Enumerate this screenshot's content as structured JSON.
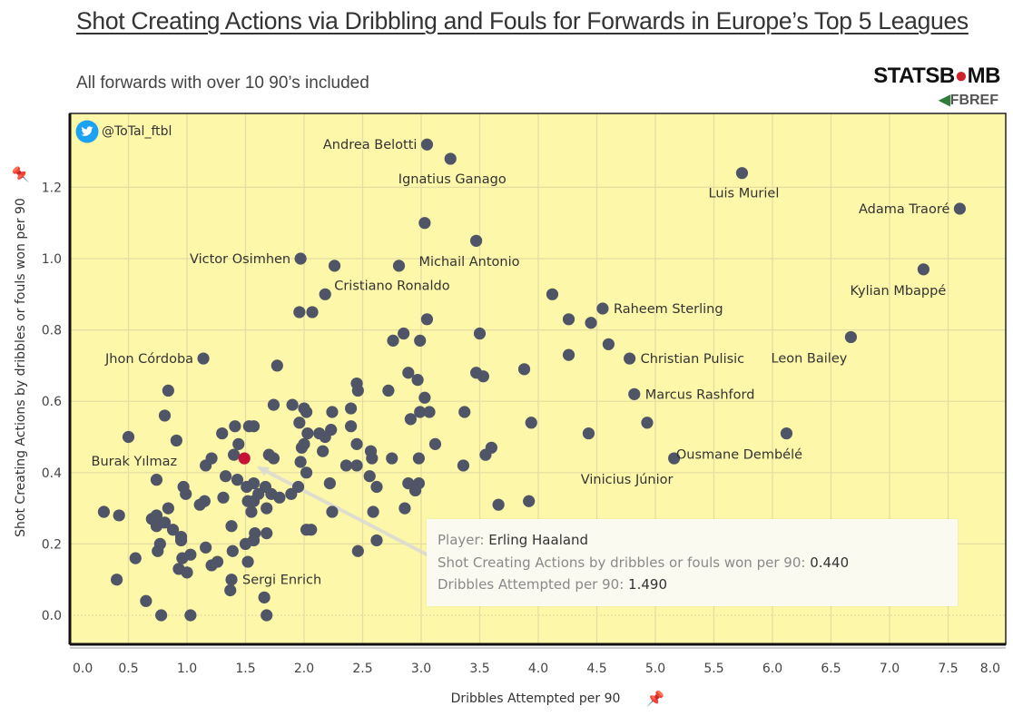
{
  "header": {
    "title": "Shot Creating Actions via Dribbling and Fouls for Forwards in Europe’s Top 5 Leagues",
    "subtitle": "All forwards with over 10 90’s included",
    "logo_text": "STATSBOMB",
    "logo_subtext": "FBREF",
    "twitter_handle": "@ToTal_ftbl"
  },
  "colors": {
    "plot_background": "#fdf7aa",
    "point": "#4f5566",
    "highlight_point": "#c41336",
    "gridline": "#e4dca0",
    "twitter_blue": "#1da1f2"
  },
  "tooltip": {
    "player_label": "Player:",
    "player_value": "Erling Haaland",
    "sca_label": "Shot Creating Actions by dribbles or fouls won per 90:",
    "sca_value": "0.440",
    "dribbles_label": "Dribbles Attempted per 90:",
    "dribbles_value": "1.490"
  },
  "chart_data": {
    "type": "scatter",
    "title": "Shot Creating Actions via Dribbling and Fouls for Forwards in Europe’s Top 5 Leagues",
    "subtitle": "All forwards with over 10 90’s included",
    "xlabel": "Dribbles Attempted per 90",
    "ylabel": "Shot Creating Actions by dribbles or fouls won per 90",
    "xlim": [
      0,
      8
    ],
    "ylim": [
      -0.08,
      1.4
    ],
    "xticks": [
      "0.0",
      "0.5",
      "1.0",
      "1.5",
      "2.0",
      "2.5",
      "3.0",
      "3.5",
      "4.0",
      "4.5",
      "5.0",
      "5.5",
      "6.0",
      "6.5",
      "7.0",
      "7.5",
      "8.0"
    ],
    "yticks": [
      "0.0",
      "0.2",
      "0.4",
      "0.6",
      "0.8",
      "1.0",
      "1.2"
    ],
    "grid": true,
    "highlighted": {
      "label": "Erling Haaland",
      "x": 1.49,
      "y": 0.44
    },
    "labeled_points": [
      {
        "label": "Andrea Belotti",
        "x": 3.05,
        "y": 1.32
      },
      {
        "label": "Ignatius Ganago",
        "x": 3.25,
        "y": 1.28
      },
      {
        "label": "Luis Muriel",
        "x": 5.74,
        "y": 1.24
      },
      {
        "label": "Adama Traoré",
        "x": 7.6,
        "y": 1.14
      },
      {
        "label": "Victor Osimhen",
        "x": 1.97,
        "y": 1.0
      },
      {
        "label": "Michail Antonio",
        "x": 2.81,
        "y": 0.98
      },
      {
        "label": "Kylian Mbappé",
        "x": 7.29,
        "y": 0.97
      },
      {
        "label": "Cristiano Ronaldo",
        "x": 2.18,
        "y": 0.9
      },
      {
        "label": "Raheem Sterling",
        "x": 4.55,
        "y": 0.86
      },
      {
        "label": "Leon Bailey",
        "x": 6.67,
        "y": 0.78
      },
      {
        "label": "Jhon Córdoba",
        "x": 1.14,
        "y": 0.72
      },
      {
        "label": "Christian Pulisic",
        "x": 4.78,
        "y": 0.72
      },
      {
        "label": "Marcus Rashford",
        "x": 4.82,
        "y": 0.62
      },
      {
        "label": "Ousmane Dembélé",
        "x": 6.12,
        "y": 0.51
      },
      {
        "label": "Burak Yılmaz",
        "x": 1.21,
        "y": 0.44
      },
      {
        "label": "Vinicius Júnior",
        "x": 5.16,
        "y": 0.44
      },
      {
        "label": "Sergi Enrich",
        "x": 1.38,
        "y": 0.1
      }
    ],
    "points": [
      [
        1.77,
        0.7
      ],
      [
        0.84,
        0.63
      ],
      [
        1.74,
        0.59
      ],
      [
        1.9,
        0.59
      ],
      [
        0.81,
        0.56
      ],
      [
        1.41,
        0.53
      ],
      [
        1.53,
        0.53
      ],
      [
        1.57,
        0.53
      ],
      [
        1.3,
        0.51
      ],
      [
        0.5,
        0.5
      ],
      [
        0.91,
        0.49
      ],
      [
        1.44,
        0.48
      ],
      [
        1.4,
        0.45
      ],
      [
        1.7,
        0.45
      ],
      [
        1.74,
        0.44
      ],
      [
        1.16,
        0.42
      ],
      [
        1.33,
        0.39
      ],
      [
        1.43,
        0.38
      ],
      [
        0.74,
        0.38
      ],
      [
        0.97,
        0.36
      ],
      [
        0.99,
        0.34
      ],
      [
        1.51,
        0.36
      ],
      [
        1.57,
        0.37
      ],
      [
        1.67,
        0.36
      ],
      [
        1.72,
        0.34
      ],
      [
        1.79,
        0.33
      ],
      [
        1.89,
        0.34
      ],
      [
        1.61,
        0.34
      ],
      [
        1.31,
        0.33
      ],
      [
        1.15,
        0.32
      ],
      [
        1.11,
        0.31
      ],
      [
        1.52,
        0.32
      ],
      [
        1.57,
        0.32
      ],
      [
        1.55,
        0.29
      ],
      [
        1.68,
        0.3
      ],
      [
        0.29,
        0.29
      ],
      [
        0.42,
        0.28
      ],
      [
        0.84,
        0.3
      ],
      [
        0.7,
        0.27
      ],
      [
        0.74,
        0.28
      ],
      [
        0.76,
        0.26
      ],
      [
        0.81,
        0.26
      ],
      [
        0.74,
        0.25
      ],
      [
        1.38,
        0.25
      ],
      [
        0.88,
        0.24
      ],
      [
        0.95,
        0.22
      ],
      [
        0.95,
        0.21
      ],
      [
        1.58,
        0.23
      ],
      [
        1.68,
        0.23
      ],
      [
        0.77,
        0.2
      ],
      [
        0.75,
        0.18
      ],
      [
        1.16,
        0.19
      ],
      [
        1.5,
        0.2
      ],
      [
        1.57,
        0.21
      ],
      [
        1.39,
        0.18
      ],
      [
        1.03,
        0.17
      ],
      [
        0.96,
        0.16
      ],
      [
        0.56,
        0.16
      ],
      [
        1.26,
        0.15
      ],
      [
        1.21,
        0.14
      ],
      [
        1.52,
        0.15
      ],
      [
        0.93,
        0.13
      ],
      [
        1.0,
        0.12
      ],
      [
        0.4,
        0.1
      ],
      [
        1.37,
        0.07
      ],
      [
        1.66,
        0.05
      ],
      [
        0.65,
        0.04
      ],
      [
        0.78,
        0.0
      ],
      [
        1.03,
        0.0
      ],
      [
        1.68,
        0.0
      ],
      [
        2.89,
        0.68
      ],
      [
        2.97,
        0.66
      ],
      [
        2.45,
        0.65
      ],
      [
        2.46,
        0.63
      ],
      [
        2.72,
        0.63
      ],
      [
        3.03,
        0.61
      ],
      [
        2.0,
        0.58
      ],
      [
        2.02,
        0.57
      ],
      [
        2.24,
        0.57
      ],
      [
        2.4,
        0.58
      ],
      [
        2.91,
        0.55
      ],
      [
        2.99,
        0.57
      ],
      [
        3.07,
        0.57
      ],
      [
        1.96,
        0.54
      ],
      [
        2.4,
        0.53
      ],
      [
        2.03,
        0.51
      ],
      [
        2.13,
        0.51
      ],
      [
        2.18,
        0.5
      ],
      [
        2.23,
        0.52
      ],
      [
        2.45,
        0.48
      ],
      [
        3.12,
        0.48
      ],
      [
        2.0,
        0.48
      ],
      [
        1.98,
        0.47
      ],
      [
        2.16,
        0.46
      ],
      [
        2.57,
        0.46
      ],
      [
        2.58,
        0.44
      ],
      [
        2.75,
        0.44
      ],
      [
        2.98,
        0.44
      ],
      [
        1.97,
        0.43
      ],
      [
        2.36,
        0.42
      ],
      [
        2.45,
        0.42
      ],
      [
        2.02,
        0.4
      ],
      [
        2.56,
        0.39
      ],
      [
        2.62,
        0.36
      ],
      [
        2.22,
        0.37
      ],
      [
        1.95,
        0.36
      ],
      [
        2.89,
        0.37
      ],
      [
        2.98,
        0.37
      ],
      [
        2.95,
        0.35
      ],
      [
        2.24,
        0.29
      ],
      [
        2.59,
        0.29
      ],
      [
        2.86,
        0.3
      ],
      [
        2.02,
        0.24
      ],
      [
        2.06,
        0.24
      ],
      [
        2.62,
        0.21
      ],
      [
        2.46,
        0.18
      ],
      [
        4.26,
        0.73
      ],
      [
        4.6,
        0.76
      ],
      [
        3.47,
        0.68
      ],
      [
        3.53,
        0.67
      ],
      [
        3.88,
        0.69
      ],
      [
        3.37,
        0.57
      ],
      [
        3.94,
        0.54
      ],
      [
        4.43,
        0.51
      ],
      [
        3.6,
        0.47
      ],
      [
        3.55,
        0.45
      ],
      [
        3.36,
        0.42
      ],
      [
        3.66,
        0.31
      ],
      [
        3.92,
        0.32
      ],
      [
        4.12,
        0.9
      ],
      [
        4.26,
        0.83
      ],
      [
        4.45,
        0.82
      ],
      [
        4.93,
        0.54
      ],
      [
        3.03,
        1.1
      ],
      [
        3.47,
        1.05
      ],
      [
        2.26,
        0.98
      ],
      [
        1.96,
        0.85
      ],
      [
        2.07,
        0.85
      ],
      [
        3.05,
        0.83
      ],
      [
        2.85,
        0.79
      ],
      [
        2.76,
        0.77
      ],
      [
        2.99,
        0.77
      ],
      [
        3.5,
        0.79
      ]
    ]
  }
}
